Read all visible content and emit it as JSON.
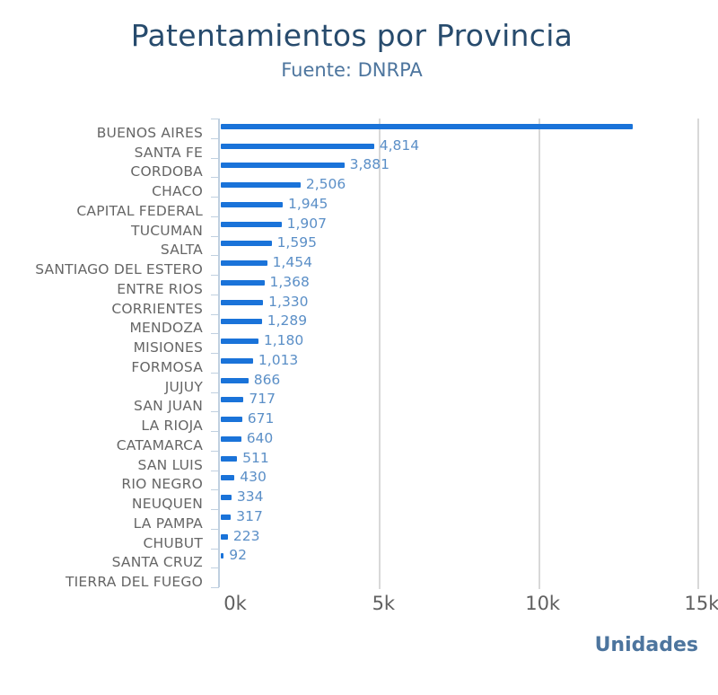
{
  "chart_data": {
    "type": "bar",
    "orientation": "horizontal",
    "title": "Patentamientos por Provincia",
    "subtitle": "Fuente: DNRPA",
    "xlabel": "Unidades",
    "ylabel": "",
    "xlim": [
      0,
      15000
    ],
    "x_ticks": [
      "0k",
      "5k",
      "10k",
      "15k"
    ],
    "x_tick_values": [
      0,
      5000,
      10000,
      15000
    ],
    "grid": true,
    "legend": null,
    "bar_color": "#1a73d9",
    "categories": [
      "BUENOS AIRES",
      "SANTA FE",
      "CORDOBA",
      "CHACO",
      "CAPITAL FEDERAL",
      "TUCUMAN",
      "SALTA",
      "SANTIAGO DEL ESTERO",
      "ENTRE RIOS",
      "CORRIENTES",
      "MENDOZA",
      "MISIONES",
      "FORMOSA",
      "JUJUY",
      "SAN JUAN",
      "LA RIOJA",
      "CATAMARCA",
      "SAN LUIS",
      "RIO NEGRO",
      "NEUQUEN",
      "LA PAMPA",
      "CHUBUT",
      "SANTA CRUZ",
      "TIERRA DEL FUEGO"
    ],
    "values": [
      12930,
      4814,
      3881,
      2506,
      1945,
      1907,
      1595,
      1454,
      1368,
      1330,
      1289,
      1180,
      1013,
      866,
      717,
      671,
      640,
      511,
      430,
      334,
      317,
      223,
      92,
      null
    ],
    "value_labels": [
      "",
      "4,814",
      "3,881",
      "2,506",
      "1,945",
      "1,907",
      "1,595",
      "1,454",
      "1,368",
      "1,330",
      "1,289",
      "1,180",
      "1,013",
      "866",
      "717",
      "671",
      "640",
      "511",
      "430",
      "334",
      "317",
      "223",
      "92",
      ""
    ],
    "annotations": [
      "BUENOS AIRES bar has no data label (value estimated ~12.9k from axis)",
      "TIERRA DEL FUEGO shows no bar"
    ]
  },
  "header": {
    "title": "Patentamientos por Provincia",
    "subtitle": "Fuente: DNRPA"
  },
  "axis": {
    "x_title": "Unidades",
    "ticks": [
      "0k",
      "5k",
      "10k",
      "15k"
    ]
  },
  "colors": {
    "title": "#274b6d",
    "subtitle": "#4d759e",
    "bar": "#1a73d9",
    "data_label": "#5b8fc7",
    "grid": "#d8d8d8"
  }
}
